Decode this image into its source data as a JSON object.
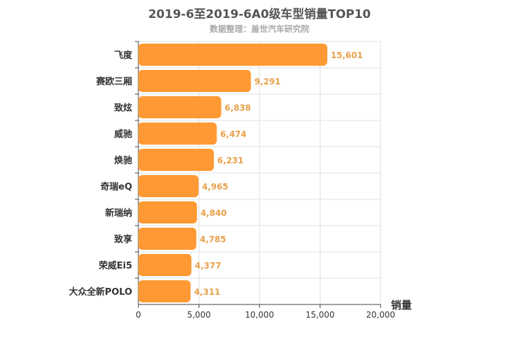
{
  "chart_data": {
    "type": "bar",
    "orientation": "horizontal",
    "title": "2019-6至2019-6A0级车型销量TOP10",
    "subtitle": "数据整理：盖世汽车研究院",
    "categories": [
      "飞度",
      "赛欧三厢",
      "致炫",
      "威驰",
      "焕驰",
      "奇瑞eQ",
      "新瑞纳",
      "致享",
      "荣威Ei5",
      "大众全新POLO"
    ],
    "values": [
      15601,
      9291,
      6838,
      6474,
      6231,
      4965,
      4840,
      4785,
      4377,
      4311
    ],
    "value_labels": [
      "15,601",
      "9,291",
      "6,838",
      "6,474",
      "6,231",
      "4,965",
      "4,840",
      "4,785",
      "4,377",
      "4,311"
    ],
    "xlabel": "销量",
    "ylabel": "",
    "xlim": [
      0,
      20000
    ],
    "xticks": [
      "0",
      "5,000",
      "10,000",
      "15,000",
      "20,000"
    ],
    "grid": true,
    "legend": "none",
    "bar_color": "#ff9933",
    "label_color": "#e8a04a"
  }
}
